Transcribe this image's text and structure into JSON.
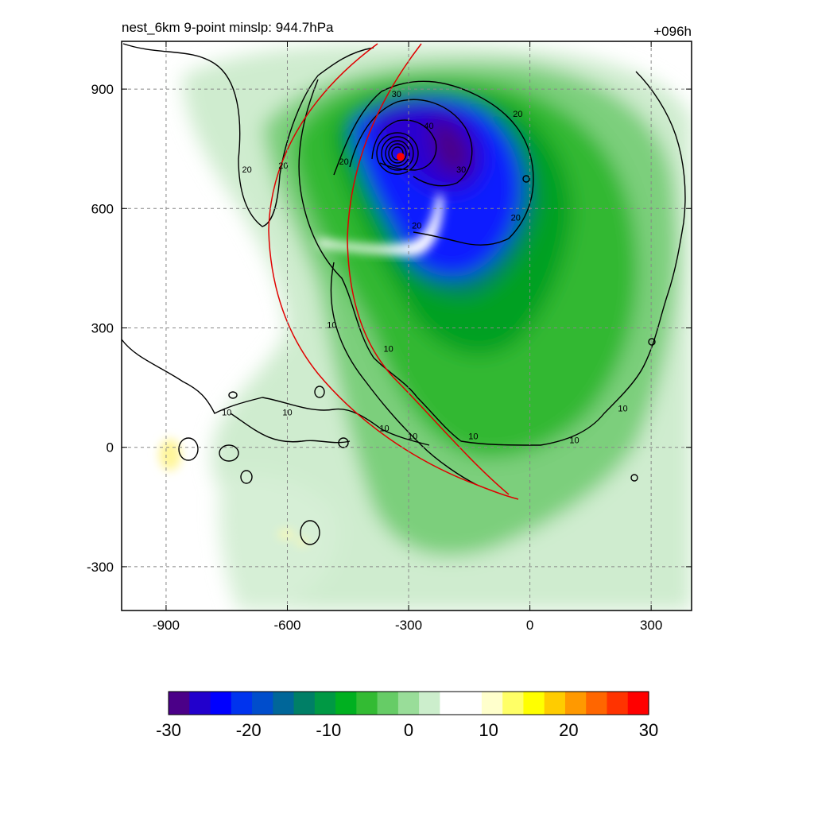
{
  "chart_data": {
    "type": "heatmap",
    "title_left": "nest_6km  9-point minslp: 944.7hPa",
    "title_right": "+096h",
    "xlim": [
      -1010,
      400
    ],
    "ylim": [
      -410,
      1020
    ],
    "x_ticks": [
      -900,
      -600,
      -300,
      0,
      300
    ],
    "x_tick_labels": [
      "-900",
      "-600",
      "-300",
      "0",
      "300"
    ],
    "y_ticks": [
      -300,
      0,
      300,
      600,
      900
    ],
    "y_tick_labels": [
      "-300",
      "0",
      "300",
      "600",
      "900"
    ],
    "grid": true,
    "storm_center": {
      "x": -320,
      "y": 730
    },
    "contour_levels": [
      10,
      20,
      30,
      40
    ],
    "contour_labels": [
      {
        "x": -700,
        "y": 690,
        "text": "20"
      },
      {
        "x": -610,
        "y": 700,
        "text": "20"
      },
      {
        "x": -460,
        "y": 710,
        "text": "20"
      },
      {
        "x": -330,
        "y": 880,
        "text": "30"
      },
      {
        "x": -250,
        "y": 800,
        "text": "40"
      },
      {
        "x": -170,
        "y": 690,
        "text": "30"
      },
      {
        "x": -30,
        "y": 830,
        "text": "20"
      },
      {
        "x": -35,
        "y": 570,
        "text": "20"
      },
      {
        "x": -280,
        "y": 550,
        "text": "20"
      },
      {
        "x": -490,
        "y": 300,
        "text": "10"
      },
      {
        "x": -350,
        "y": 240,
        "text": "10"
      },
      {
        "x": -750,
        "y": 80,
        "text": "10"
      },
      {
        "x": -600,
        "y": 80,
        "text": "10"
      },
      {
        "x": -360,
        "y": 40,
        "text": "10"
      },
      {
        "x": -290,
        "y": 20,
        "text": "10"
      },
      {
        "x": -140,
        "y": 20,
        "text": "10"
      },
      {
        "x": 110,
        "y": 10,
        "text": "10"
      },
      {
        "x": 230,
        "y": 90,
        "text": "10"
      }
    ],
    "colorbar": {
      "min": -30,
      "max": 30,
      "tick_values": [
        -30,
        -20,
        -10,
        0,
        10,
        20,
        30
      ],
      "tick_labels": [
        "-30",
        "-20",
        "-10",
        "0",
        "10",
        "20",
        "30"
      ],
      "colors": [
        "#4b0088",
        "#2200cc",
        "#0000ff",
        "#0033ee",
        "#004dcc",
        "#006699",
        "#007f66",
        "#009944",
        "#00b020",
        "#33bb33",
        "#66cc66",
        "#99dd99",
        "#cceecc",
        "#ffffff",
        "#ffffff",
        "#ffffcc",
        "#ffff66",
        "#ffff00",
        "#ffcc00",
        "#ff9900",
        "#ff6600",
        "#ff3300",
        "#ff0000"
      ]
    }
  }
}
